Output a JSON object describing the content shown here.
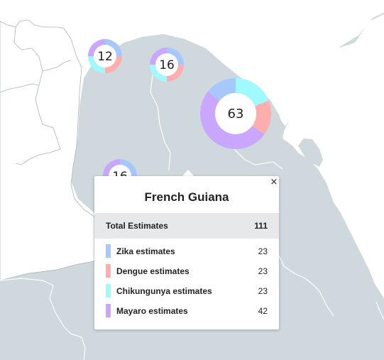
{
  "map": {
    "land_color": "#cfd8dc",
    "border_color": "#ffffff",
    "background_color": "#ffffff"
  },
  "clusters": [
    {
      "label": "12",
      "segments": [
        {
          "color": "#a6c8ff",
          "value": 3
        },
        {
          "color": "#ffadad",
          "value": 3
        },
        {
          "color": "#a0f9ff",
          "value": 3
        },
        {
          "color": "#c9a6ff",
          "value": 3
        }
      ]
    },
    {
      "label": "16",
      "segments": [
        {
          "color": "#a6c8ff",
          "value": 4
        },
        {
          "color": "#ffadad",
          "value": 4
        },
        {
          "color": "#a0f9ff",
          "value": 4
        },
        {
          "color": "#c9a6ff",
          "value": 4
        }
      ]
    },
    {
      "label": "63",
      "segments": [
        {
          "color": "#a0f9ff",
          "value": 12
        },
        {
          "color": "#ffadad",
          "value": 10
        },
        {
          "color": "#c9a6ff",
          "value": 32
        },
        {
          "color": "#a6c8ff",
          "value": 9
        }
      ]
    },
    {
      "label": "16",
      "segments": [
        {
          "color": "#a6c8ff",
          "value": 4
        },
        {
          "color": "#a0f9ff",
          "value": 4
        },
        {
          "color": "#ffadad",
          "value": 4
        },
        {
          "color": "#c9a6ff",
          "value": 4
        }
      ]
    }
  ],
  "popup": {
    "close": "×",
    "title": "French Guiana",
    "total_label": "Total Estimates",
    "total_value": "111",
    "rows": [
      {
        "label": "Zika estimates",
        "value": "23",
        "color": "#a6c8ff"
      },
      {
        "label": "Dengue estimates",
        "value": "23",
        "color": "#ffadad"
      },
      {
        "label": "Chikungunya estimates",
        "value": "23",
        "color": "#a0f9ff"
      },
      {
        "label": "Mayaro estimates",
        "value": "42",
        "color": "#c9a6ff"
      }
    ]
  }
}
